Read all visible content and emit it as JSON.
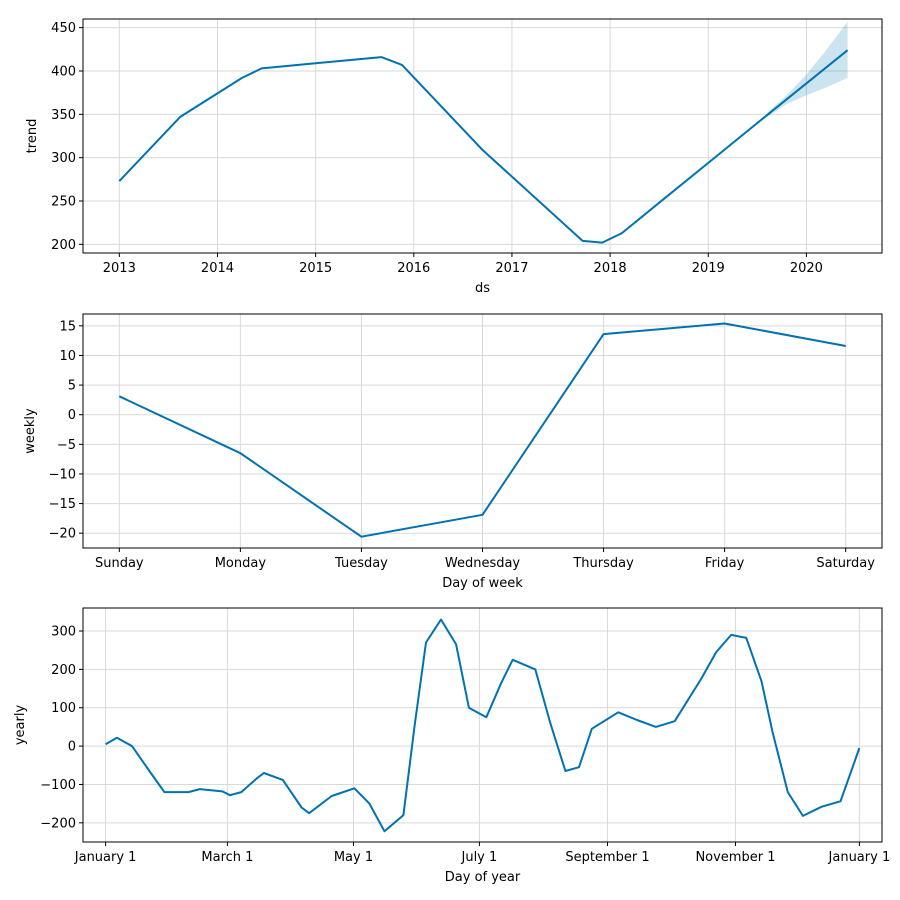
{
  "colors": {
    "line": "#0072B2",
    "band": "#0072B2",
    "grid": "#d9d9d9"
  },
  "chart_data": [
    {
      "type": "line",
      "xlabel": "ds",
      "ylabel": "trend",
      "grid": true,
      "xlim": [
        2012.63,
        2020.77
      ],
      "ylim": [
        190,
        460
      ],
      "x_ticks": [
        2013,
        2014,
        2015,
        2016,
        2017,
        2018,
        2019,
        2020
      ],
      "x_tick_labels": [
        "2013",
        "2014",
        "2015",
        "2016",
        "2017",
        "2018",
        "2019",
        "2020"
      ],
      "y_ticks": [
        200,
        250,
        300,
        350,
        400,
        450
      ],
      "y_tick_labels": [
        "200",
        "250",
        "300",
        "350",
        "400",
        "450"
      ],
      "series": [
        {
          "x": [
            2013.0,
            2013.62,
            2014.25,
            2014.45,
            2015.0,
            2015.67,
            2015.88,
            2016.7,
            2017.72,
            2017.92,
            2018.12,
            2018.5,
            2019.0,
            2019.5,
            2020.42
          ],
          "y": [
            273,
            347,
            392,
            403,
            409,
            416,
            407,
            309,
            204,
            202,
            213,
            248,
            294,
            340,
            424
          ]
        }
      ],
      "band": {
        "x": [
          2019.6,
          2019.8,
          2020.0,
          2020.2,
          2020.42
        ],
        "upper": [
          352,
          372,
          396,
          424,
          457
        ],
        "lower": [
          347,
          362,
          372,
          381,
          392
        ]
      }
    },
    {
      "type": "line",
      "xlabel": "Day of week",
      "ylabel": "weekly",
      "grid": true,
      "xlim": [
        -0.3,
        6.3
      ],
      "ylim": [
        -22.5,
        17
      ],
      "categories": [
        "Sunday",
        "Monday",
        "Tuesday",
        "Wednesday",
        "Thursday",
        "Friday",
        "Saturday"
      ],
      "y_ticks": [
        -20,
        -15,
        -10,
        -5,
        0,
        5,
        10,
        15
      ],
      "y_tick_labels": [
        "−20",
        "−15",
        "−10",
        "−5",
        "0",
        "5",
        "10",
        "15"
      ],
      "series": [
        {
          "values": [
            3.1,
            -6.5,
            -20.6,
            -16.9,
            13.6,
            15.4,
            11.6
          ]
        }
      ]
    },
    {
      "type": "line",
      "xlabel": "Day of year",
      "ylabel": "yearly",
      "grid": true,
      "xlim": [
        -0.03,
        1.03
      ],
      "ylim": [
        -250,
        360
      ],
      "x_ticks": [
        0,
        0.1616,
        0.3288,
        0.4959,
        0.6658,
        0.8356,
        1.0
      ],
      "x_tick_labels": [
        "January 1",
        "March 1",
        "May 1",
        "July 1",
        "September 1",
        "November 1",
        "January 1"
      ],
      "y_ticks": [
        -200,
        -100,
        0,
        100,
        200,
        300
      ],
      "y_tick_labels": [
        "−200",
        "−100",
        "0",
        "100",
        "200",
        "300"
      ],
      "series": [
        {
          "x": [
            0,
            0.015,
            0.035,
            0.06,
            0.078,
            0.11,
            0.125,
            0.155,
            0.165,
            0.18,
            0.2,
            0.21,
            0.235,
            0.26,
            0.27,
            0.3,
            0.33,
            0.35,
            0.37,
            0.395,
            0.41,
            0.425,
            0.445,
            0.465,
            0.482,
            0.505,
            0.525,
            0.54,
            0.57,
            0.59,
            0.61,
            0.628,
            0.645,
            0.68,
            0.705,
            0.73,
            0.755,
            0.79,
            0.81,
            0.83,
            0.85,
            0.87,
            0.885,
            0.905,
            0.925,
            0.95,
            0.975,
            1.0
          ],
          "y": [
            5,
            22,
            0,
            -70,
            -120,
            -120,
            -112,
            -118,
            -128,
            -120,
            -85,
            -70,
            -88,
            -160,
            -175,
            -130,
            -110,
            -150,
            -222,
            -180,
            55,
            270,
            330,
            265,
            100,
            75,
            165,
            225,
            200,
            60,
            -65,
            -55,
            45,
            88,
            68,
            50,
            65,
            175,
            245,
            290,
            282,
            170,
            35,
            -120,
            -182,
            -158,
            -144,
            -5
          ]
        }
      ]
    }
  ]
}
